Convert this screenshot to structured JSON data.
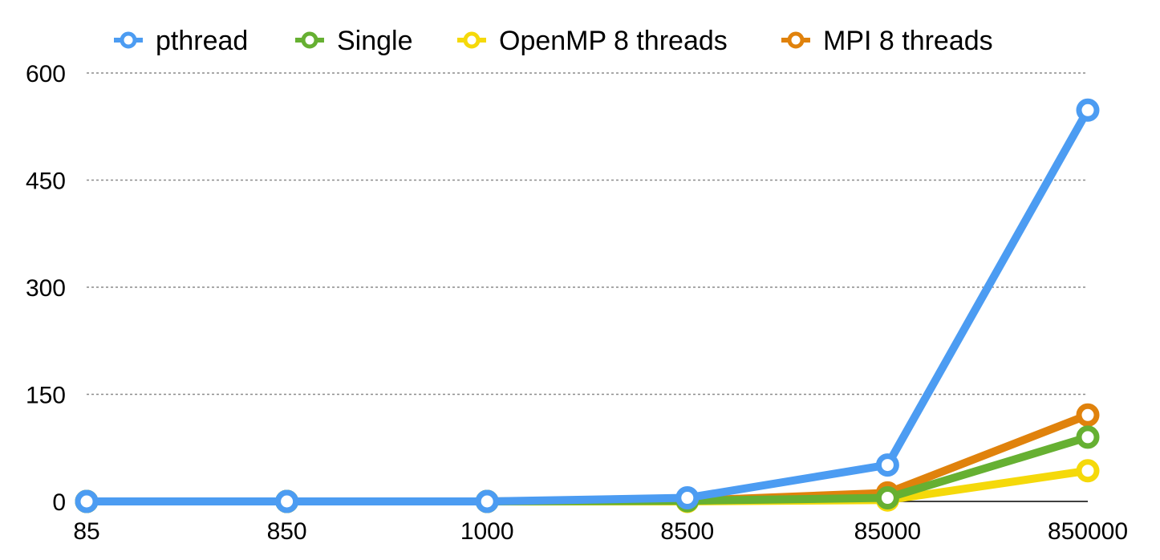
{
  "chart_data": {
    "type": "line",
    "title": "",
    "xlabel": "",
    "ylabel": "",
    "categories": [
      "85",
      "850",
      "1000",
      "8500",
      "85000",
      "850000"
    ],
    "yticks": [
      "0",
      "150",
      "300",
      "450",
      "600"
    ],
    "ylim": [
      0,
      600
    ],
    "grid": true,
    "legend_position": "top",
    "series": [
      {
        "name": "MPI 8 threads",
        "color": "#E0820C",
        "values": [
          0,
          0,
          0,
          1,
          12,
          121
        ]
      },
      {
        "name": "OpenMP 8 threads",
        "color": "#F5D90A",
        "values": [
          0,
          0,
          0,
          0,
          2,
          43
        ]
      },
      {
        "name": "Single",
        "color": "#66B032",
        "values": [
          0,
          0,
          0,
          1,
          5,
          90
        ]
      },
      {
        "name": "pthread",
        "color": "#4C9CF2",
        "values": [
          0,
          0,
          0,
          5,
          51,
          548
        ]
      }
    ],
    "legend_order": [
      "pthread",
      "Single",
      "OpenMP 8 threads",
      "MPI 8 threads"
    ]
  }
}
